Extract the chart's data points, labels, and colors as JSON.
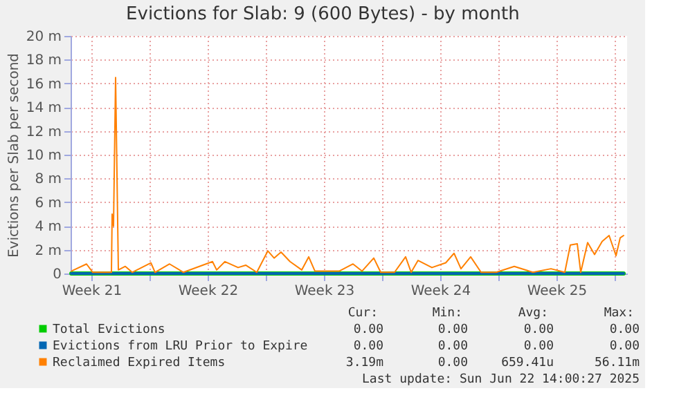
{
  "chart_data": {
    "type": "line",
    "title": "Evictions for Slab: 9 (600 Bytes) - by month",
    "ylabel": "Evictions per Slab per second",
    "xlim": [
      "2025-05-20T06:00",
      "2025-06-22T18:00"
    ],
    "xticks": [
      {
        "value": "2025-05-21T12:00",
        "label": "Week 21"
      },
      {
        "value": "2025-05-25T00:00",
        "label": null
      },
      {
        "value": "2025-05-28T12:00",
        "label": "Week 22"
      },
      {
        "value": "2025-06-01T00:00",
        "label": null
      },
      {
        "value": "2025-06-04T12:00",
        "label": "Week 23"
      },
      {
        "value": "2025-06-08T00:00",
        "label": null
      },
      {
        "value": "2025-06-11T12:00",
        "label": "Week 24"
      },
      {
        "value": "2025-06-15T00:00",
        "label": null
      },
      {
        "value": "2025-06-18T12:00",
        "label": "Week 25"
      },
      {
        "value": "2025-06-22T00:00",
        "label": null
      }
    ],
    "ylim": [
      0,
      20
    ],
    "yticks": [
      0,
      {
        "value": 2,
        "label": "2 m"
      },
      {
        "value": 4,
        "label": "4 m"
      },
      {
        "value": 6,
        "label": "6 m"
      },
      {
        "value": 8,
        "label": "8 m"
      },
      {
        "value": 10,
        "label": "10 m"
      },
      {
        "value": 12,
        "label": "12 m"
      },
      {
        "value": 14,
        "label": "14 m"
      },
      {
        "value": 16,
        "label": "16 m"
      },
      {
        "value": 18,
        "label": "18 m"
      },
      {
        "value": 20,
        "label": "20 m"
      }
    ],
    "grid": true,
    "legend": "bottom",
    "line_style": "solid",
    "series": [
      {
        "name": "Total Evictions",
        "color": "#00cc00",
        "x": [
          "2025-05-20T07:00",
          "2025-06-22T13:00"
        ],
        "values": [
          0,
          0
        ]
      },
      {
        "name": "Evictions from LRU Prior to Expire",
        "color": "#0066b3",
        "x": [
          "2025-05-20T07:00",
          "2025-06-22T13:00"
        ],
        "values": [
          0,
          0
        ]
      },
      {
        "name": "Reclaimed Expired Items",
        "color": "#ff8000",
        "x": [
          "2025-05-20T07:00",
          "2025-05-21T05:00",
          "2025-05-21T14:00",
          "2025-05-22T17:00",
          "2025-05-22T18:00",
          "2025-05-22T20:00",
          "2025-05-22T23:00",
          "2025-05-23T03:00",
          "2025-05-23T13:00",
          "2025-05-23T23:00",
          "2025-05-25T02:00",
          "2025-05-25T08:00",
          "2025-05-26T05:00",
          "2025-05-27T01:00",
          "2025-05-28T19:00",
          "2025-05-29T01:00",
          "2025-05-29T13:00",
          "2025-05-30T08:00",
          "2025-05-30T19:00",
          "2025-05-31T11:00",
          "2025-06-01T03:00",
          "2025-06-01T12:00",
          "2025-06-01T22:00",
          "2025-06-02T11:00",
          "2025-06-03T04:00",
          "2025-06-03T14:00",
          "2025-06-03T23:00",
          "2025-06-05T10:00",
          "2025-06-06T06:00",
          "2025-06-06T19:00",
          "2025-06-07T12:00",
          "2025-06-07T22:00",
          "2025-06-08T18:00",
          "2025-06-09T10:00",
          "2025-06-09T18:00",
          "2025-06-10T04:00",
          "2025-06-11T00:00",
          "2025-06-11T20:00",
          "2025-06-12T08:00",
          "2025-06-12T18:00",
          "2025-06-13T08:00",
          "2025-06-13T23:00",
          "2025-06-14T21:00",
          "2025-06-15T23:00",
          "2025-06-17T02:00",
          "2025-06-18T04:00",
          "2025-06-19T00:00",
          "2025-06-19T08:00",
          "2025-06-19T18:00",
          "2025-06-19T23:00",
          "2025-06-20T09:00",
          "2025-06-20T19:00",
          "2025-06-21T06:00",
          "2025-06-21T16:00",
          "2025-06-22T02:00",
          "2025-06-22T08:00",
          "2025-06-22T13:00"
        ],
        "values": [
          0.2,
          0.8,
          0.1,
          0.1,
          5,
          4,
          16.5,
          0.3,
          0.6,
          0.1,
          0.9,
          0.1,
          0.8,
          0.1,
          1.0,
          0.3,
          1.0,
          0.5,
          0.7,
          0.1,
          1.9,
          1.3,
          1.8,
          1.0,
          0.3,
          1.4,
          0.2,
          0.2,
          0.8,
          0.2,
          1.3,
          0.1,
          0.1,
          1.4,
          0.1,
          1.1,
          0.5,
          0.9,
          1.7,
          0.4,
          1.4,
          0.1,
          0.1,
          0.6,
          0.1,
          0.4,
          0.1,
          2.4,
          2.5,
          0.1,
          2.6,
          1.6,
          2.7,
          3.2,
          1.5,
          3.0,
          3.2
        ]
      }
    ],
    "annotations": [
      "Cur:",
      "Min:",
      "Avg:",
      "Max:",
      "0.00",
      "0.00",
      "0.00",
      "0.00",
      "0.00",
      "0.00",
      "0.00",
      "0.00",
      "3.19m",
      "0.00",
      "659.41u",
      "56.11m",
      "Last update: Sun Jun 22 14:00:27 2025"
    ]
  }
}
